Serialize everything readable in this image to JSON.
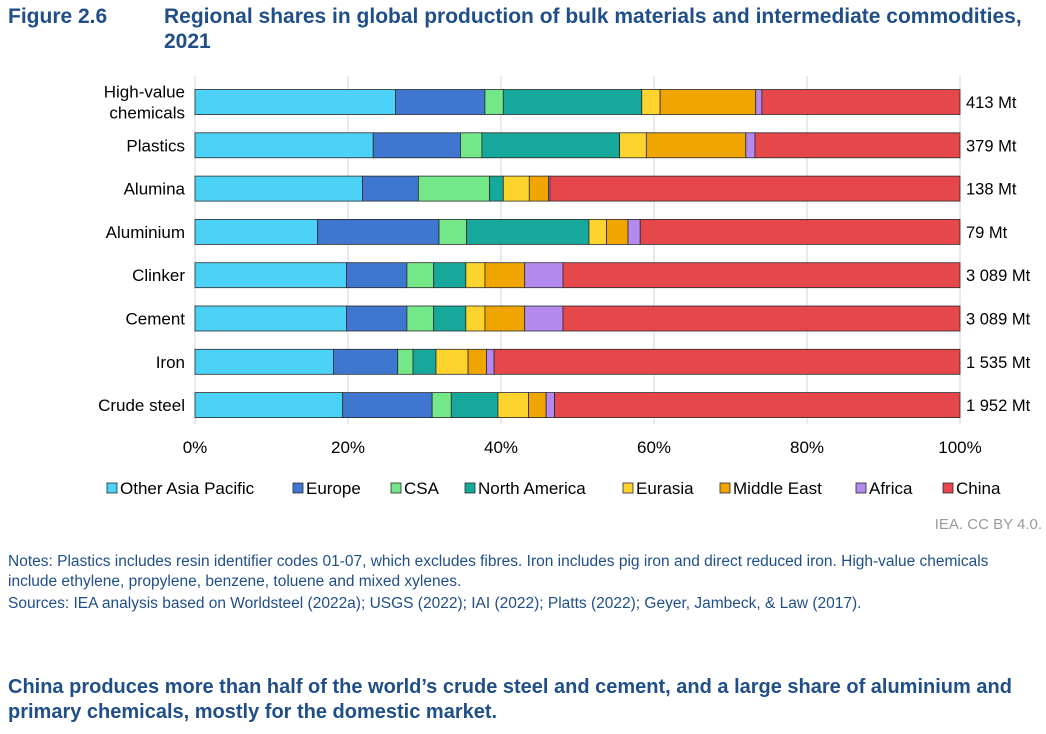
{
  "figure": {
    "number": "Figure 2.6",
    "title": "Regional shares in global production of bulk materials and intermediate commodities, 2021"
  },
  "chart_data": {
    "type": "bar",
    "orientation": "horizontal",
    "stacked": true,
    "categories": [
      [
        "High-value",
        "chemicals"
      ],
      [
        "Plastics"
      ],
      [
        "Alumina"
      ],
      [
        "Aluminium"
      ],
      [
        "Clinker"
      ],
      [
        "Cement"
      ],
      [
        "Iron"
      ],
      [
        "Crude steel"
      ]
    ],
    "totals": [
      "413 Mt",
      "379 Mt",
      "138 Mt",
      "79 Mt",
      "3 089 Mt",
      "3 089 Mt",
      "1 535 Mt",
      "1 952 Mt"
    ],
    "series": [
      {
        "name": "Other Asia Pacific",
        "color": "#4dd2f7",
        "values": [
          26.2,
          23.3,
          21.9,
          16.0,
          19.8,
          19.8,
          18.1,
          19.3
        ]
      },
      {
        "name": "Europe",
        "color": "#3f77d0",
        "values": [
          11.7,
          11.4,
          7.3,
          15.9,
          7.9,
          7.9,
          8.4,
          11.7
        ]
      },
      {
        "name": "CSA",
        "color": "#74e889",
        "values": [
          2.4,
          2.8,
          9.3,
          3.6,
          3.5,
          3.5,
          2.0,
          2.5
        ]
      },
      {
        "name": "North America",
        "color": "#16a99b",
        "values": [
          18.1,
          18.0,
          1.8,
          16.0,
          4.2,
          4.2,
          3.0,
          6.1
        ]
      },
      {
        "name": "Eurasia",
        "color": "#fdd42e",
        "values": [
          2.4,
          3.5,
          3.4,
          2.3,
          2.5,
          2.5,
          4.2,
          4.0
        ]
      },
      {
        "name": "Middle East",
        "color": "#f0a500",
        "values": [
          12.5,
          13.0,
          2.5,
          2.8,
          5.2,
          5.2,
          2.4,
          2.3
        ]
      },
      {
        "name": "Africa",
        "color": "#b48af0",
        "values": [
          0.8,
          1.2,
          0.2,
          1.6,
          5.0,
          5.0,
          1.0,
          1.1
        ]
      },
      {
        "name": "China",
        "color": "#e5474a",
        "values": [
          25.9,
          26.8,
          53.6,
          41.8,
          51.9,
          51.9,
          60.9,
          53.0
        ]
      }
    ],
    "xlim": [
      0,
      100
    ],
    "xticks": [
      "0%",
      "20%",
      "40%",
      "60%",
      "80%",
      "100%"
    ],
    "legend_position": "bottom",
    "grid": "vertical"
  },
  "credit": "IEA. CC BY 4.0.",
  "notes": [
    "Notes: Plastics includes resin identifier codes 01-07, which excludes fibres. Iron includes pig iron and direct reduced iron. High-value chemicals include ethylene, propylene, benzene, toluene and mixed xylenes.",
    "Sources: IEA analysis based on Worldsteel (2022a); USGS (2022); IAI (2022); Platts (2022); Geyer, Jambeck, & Law (2017)."
  ],
  "takeaway": "China produces more than half of the world’s crude steel and cement, and a large share of aluminium and primary chemicals, mostly for the domestic market."
}
